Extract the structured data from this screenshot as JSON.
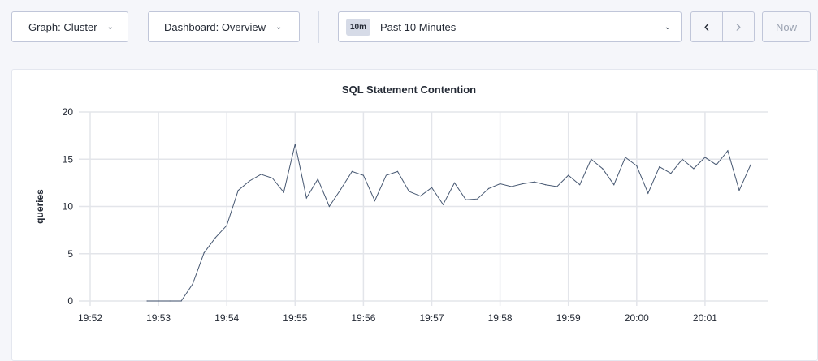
{
  "toolbar": {
    "graph_label": "Graph: Cluster",
    "dashboard_label": "Dashboard: Overview",
    "time_badge": "10m",
    "time_label": "Past 10 Minutes",
    "prev_icon": "chevron-left-icon",
    "next_icon": "chevron-right-icon",
    "now_label": "Now"
  },
  "chart_data": {
    "type": "line",
    "title": "SQL Statement Contention",
    "ylabel": "queries",
    "xlabel": "",
    "ylim": [
      0,
      20
    ],
    "yticks": [
      0,
      5,
      10,
      15,
      20
    ],
    "xlim": [
      "19:52:00",
      "20:01:55"
    ],
    "xticks": [
      "19:52",
      "19:53",
      "19:54",
      "19:55",
      "19:56",
      "19:57",
      "19:58",
      "19:59",
      "20:00",
      "20:01"
    ],
    "grid": true,
    "line_color": "#475872",
    "x": [
      "19:52:50",
      "19:53:00",
      "19:53:10",
      "19:53:20",
      "19:53:30",
      "19:53:40",
      "19:53:50",
      "19:54:00",
      "19:54:10",
      "19:54:20",
      "19:54:30",
      "19:54:40",
      "19:54:50",
      "19:55:00",
      "19:55:10",
      "19:55:20",
      "19:55:30",
      "19:55:40",
      "19:55:50",
      "19:56:00",
      "19:56:10",
      "19:56:20",
      "19:56:30",
      "19:56:40",
      "19:56:50",
      "19:57:00",
      "19:57:10",
      "19:57:20",
      "19:57:30",
      "19:57:40",
      "19:57:50",
      "19:58:00",
      "19:58:10",
      "19:58:20",
      "19:58:30",
      "19:58:40",
      "19:58:50",
      "19:59:00",
      "19:59:10",
      "19:59:20",
      "19:59:30",
      "19:59:40",
      "19:59:50",
      "20:00:00",
      "20:00:10",
      "20:00:20",
      "20:00:30",
      "20:00:40",
      "20:00:50",
      "20:01:00",
      "20:01:10",
      "20:01:20",
      "20:01:30",
      "20:01:40"
    ],
    "values": [
      0,
      0,
      0,
      0,
      1.8,
      5.1,
      6.7,
      8.0,
      11.7,
      12.7,
      13.4,
      13.0,
      11.5,
      16.6,
      10.9,
      12.9,
      10.0,
      11.8,
      13.7,
      13.3,
      10.6,
      13.3,
      13.7,
      11.6,
      11.1,
      12.0,
      10.2,
      12.5,
      10.7,
      10.8,
      11.9,
      12.4,
      12.1,
      12.4,
      12.6,
      12.3,
      12.1,
      13.3,
      12.3,
      15.0,
      14.0,
      12.3,
      15.2,
      14.3,
      11.4,
      14.2,
      13.5,
      15.0,
      14.0,
      15.2,
      14.4,
      15.9,
      11.7,
      14.4
    ]
  }
}
